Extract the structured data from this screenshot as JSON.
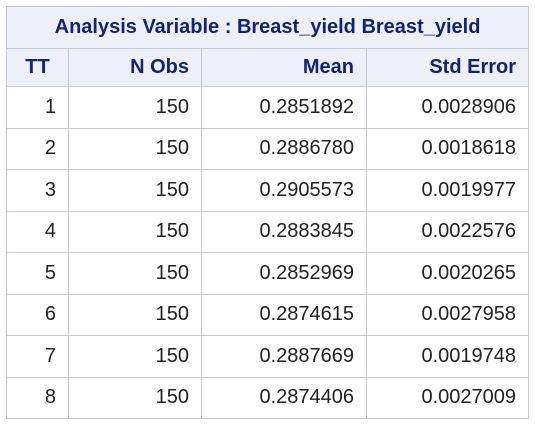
{
  "table": {
    "title": "Analysis Variable : Breast_yield Breast_yield",
    "headers": [
      "TT",
      "N Obs",
      "Mean",
      "Std Error"
    ],
    "rows": [
      [
        "1",
        "150",
        "0.2851892",
        "0.0028906"
      ],
      [
        "2",
        "150",
        "0.2886780",
        "0.0018618"
      ],
      [
        "3",
        "150",
        "0.2905573",
        "0.0019977"
      ],
      [
        "4",
        "150",
        "0.2883845",
        "0.0022576"
      ],
      [
        "5",
        "150",
        "0.2852969",
        "0.0020265"
      ],
      [
        "6",
        "150",
        "0.2874615",
        "0.0027958"
      ],
      [
        "7",
        "150",
        "0.2887669",
        "0.0019748"
      ],
      [
        "8",
        "150",
        "0.2874406",
        "0.0027009"
      ]
    ]
  },
  "colors": {
    "header_background": "#edf0f8",
    "header_text": "#112277",
    "border": "#c6c9d4",
    "cell_text": "#222222"
  }
}
